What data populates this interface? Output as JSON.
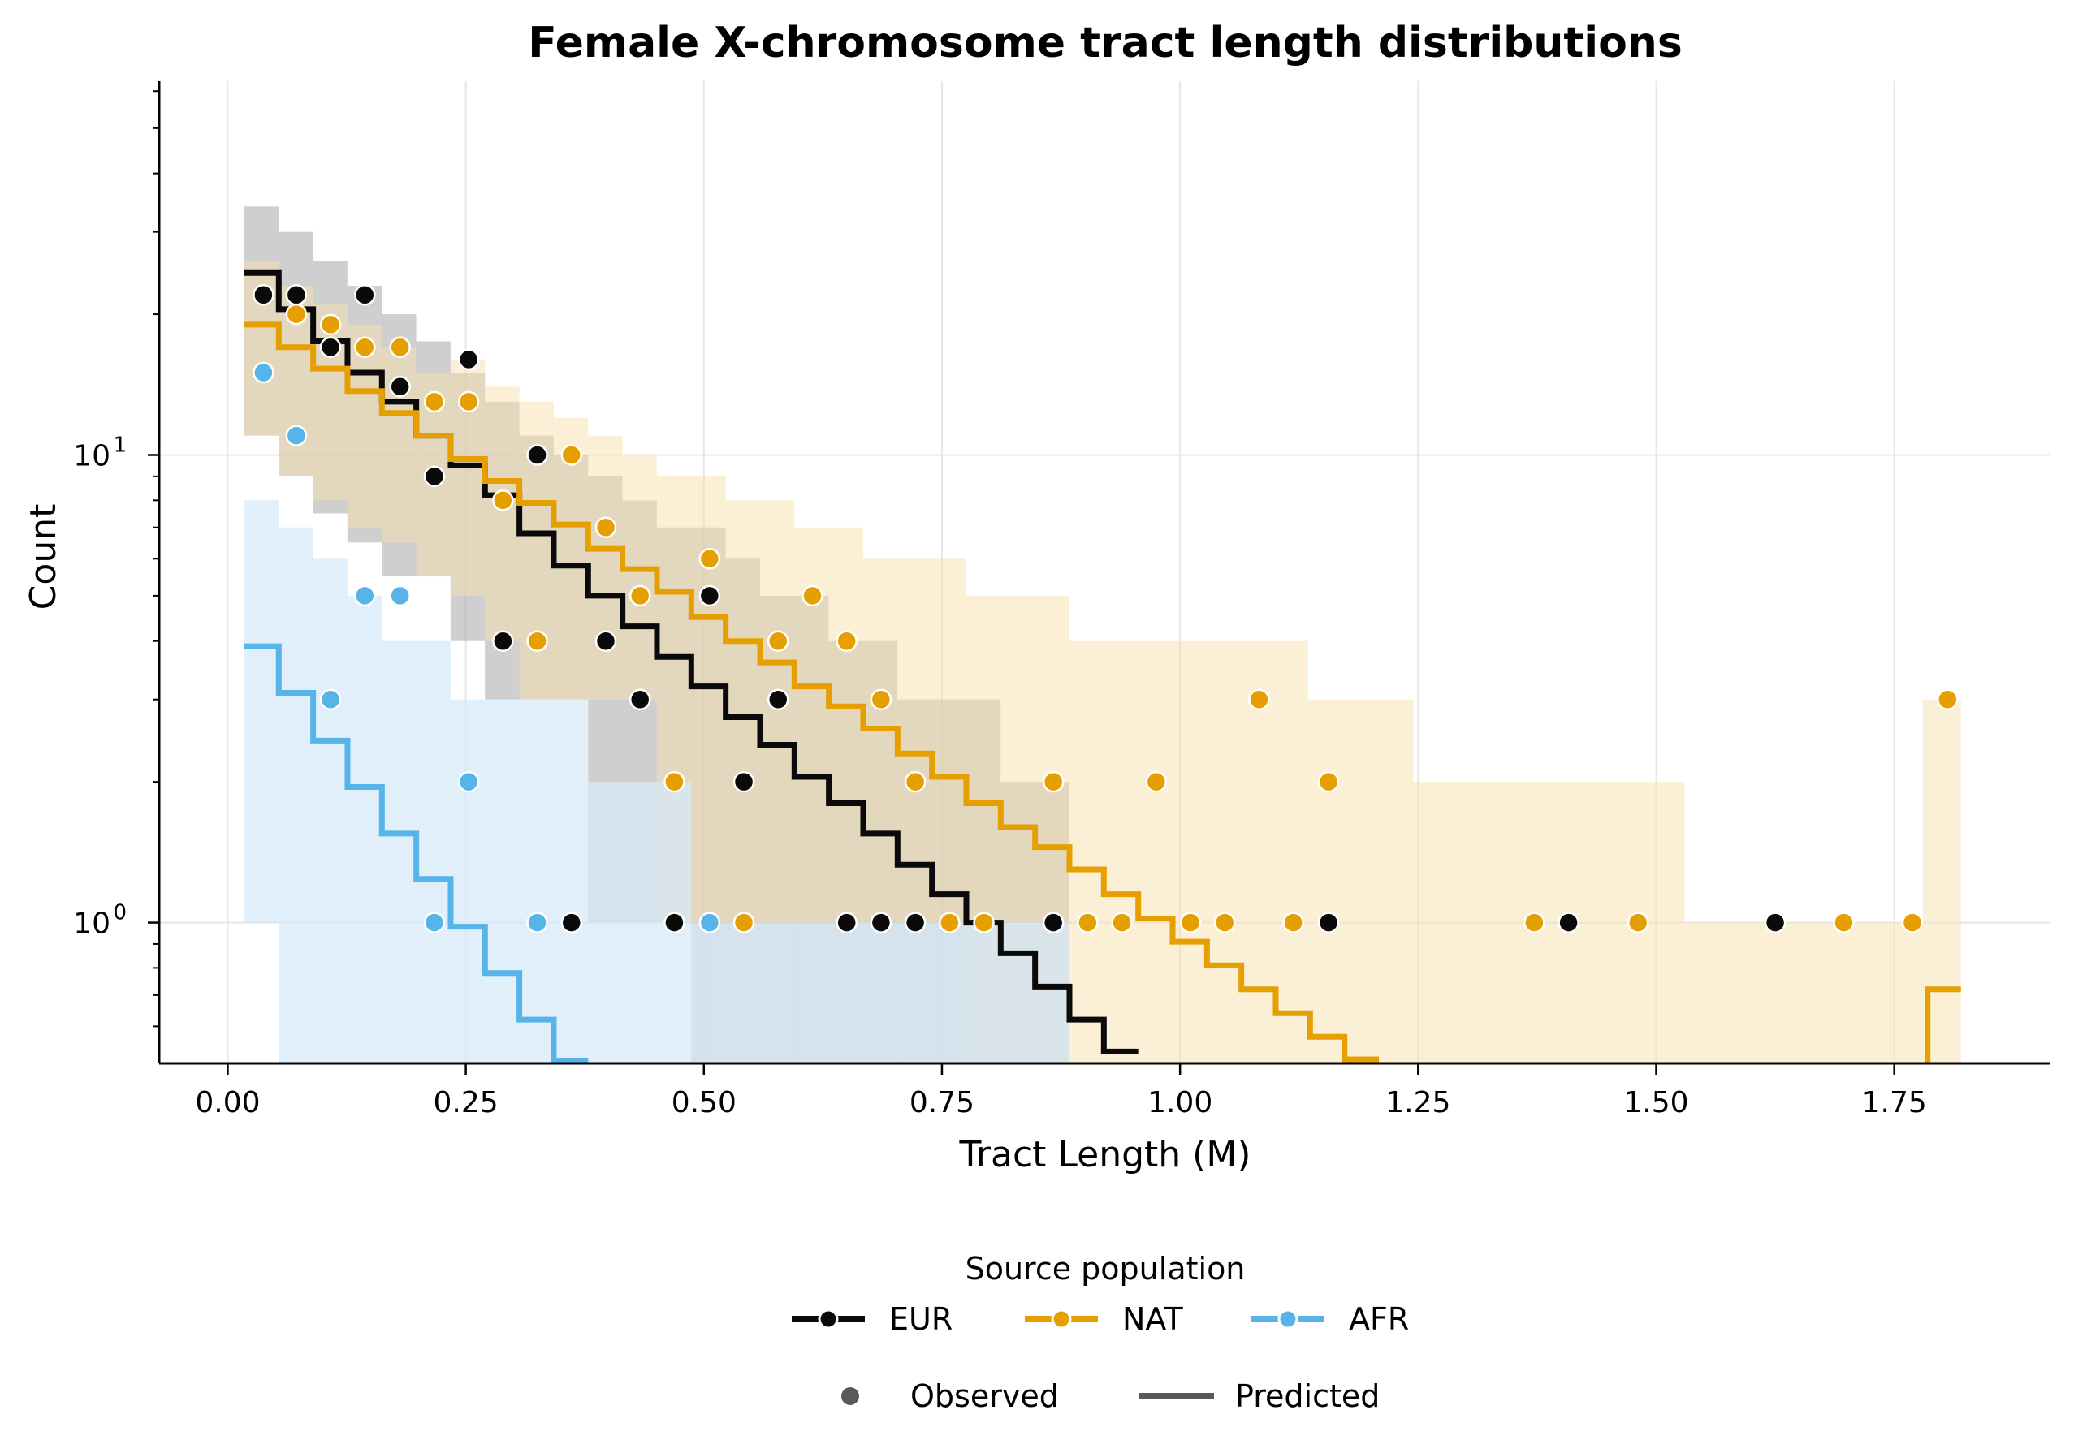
{
  "chart_data": {
    "type": "line",
    "title": "Female X-chromosome tract length distributions",
    "xlabel": "Tract Length (M)",
    "ylabel": "Count",
    "xscale": "linear",
    "yscale": "log",
    "xlim": [
      -0.072,
      1.914
    ],
    "ylim": [
      0.5,
      63
    ],
    "xticks": [
      0.0,
      0.25,
      0.5,
      0.75,
      1.0,
      1.25,
      1.5,
      1.75
    ],
    "xtick_labels": [
      "0.00",
      "0.25",
      "0.50",
      "0.75",
      "1.00",
      "1.25",
      "1.50",
      "1.75"
    ],
    "yticks": [
      1,
      10
    ],
    "ytick_labels": [
      {
        "base": "10",
        "exp": "0"
      },
      {
        "base": "10",
        "exp": "1"
      }
    ],
    "grid": true,
    "legend": {
      "title": "Source population",
      "placement": "bottom-center",
      "entries": [
        "EUR",
        "NAT",
        "AFR"
      ],
      "style_entries": [
        "Observed",
        "Predicted"
      ]
    },
    "series": [
      {
        "name": "EUR",
        "color": "#0a0a0a",
        "band_color": "#a8a8a8",
        "observed": {
          "x": [
            0.0375,
            0.072,
            0.108,
            0.144,
            0.181,
            0.217,
            0.253,
            0.289,
            0.325,
            0.361,
            0.397,
            0.433,
            0.469,
            0.506,
            0.542,
            0.578,
            0.65,
            0.686,
            0.722,
            0.867,
            1.156,
            1.408,
            1.625
          ],
          "y": [
            22,
            22,
            17,
            22,
            14,
            9,
            16,
            4,
            10,
            1,
            4,
            3,
            1,
            5,
            2,
            3,
            1,
            1,
            1,
            1,
            1,
            1,
            1
          ]
        },
        "predicted": {
          "start": 0.0175,
          "bin_width": 0.0361,
          "values": [
            24.5,
            20.5,
            17.5,
            15,
            13,
            11,
            9.5,
            8.2,
            6.8,
            5.8,
            5.0,
            4.3,
            3.7,
            3.2,
            2.75,
            2.4,
            2.05,
            1.8,
            1.55,
            1.33,
            1.15,
            1.0,
            0.86,
            0.73,
            0.62,
            0.53
          ]
        },
        "band": [
          {
            "x0": 0.0175,
            "x1": 0.0535,
            "lo": 11,
            "hi": 34
          },
          {
            "x0": 0.0535,
            "x1": 0.0896,
            "lo": 9,
            "hi": 30
          },
          {
            "x0": 0.0896,
            "x1": 0.1257,
            "lo": 7.5,
            "hi": 26
          },
          {
            "x0": 0.1257,
            "x1": 0.1618,
            "lo": 6.5,
            "hi": 23
          },
          {
            "x0": 0.1618,
            "x1": 0.1979,
            "lo": 5.5,
            "hi": 20
          },
          {
            "x0": 0.1979,
            "x1": 0.234,
            "lo": 5.5,
            "hi": 17.5
          },
          {
            "x0": 0.234,
            "x1": 0.2701,
            "lo": 4,
            "hi": 15
          },
          {
            "x0": 0.2701,
            "x1": 0.3062,
            "lo": 3,
            "hi": 13
          },
          {
            "x0": 0.3062,
            "x1": 0.3423,
            "lo": 3,
            "hi": 11
          },
          {
            "x0": 0.3423,
            "x1": 0.3784,
            "lo": 3,
            "hi": 10
          },
          {
            "x0": 0.3784,
            "x1": 0.4145,
            "lo": 1,
            "hi": 9
          },
          {
            "x0": 0.4145,
            "x1": 0.4506,
            "lo": 1,
            "hi": 8
          },
          {
            "x0": 0.4506,
            "x1": 0.4867,
            "lo": 1,
            "hi": 7
          },
          {
            "x0": 0.4867,
            "x1": 0.5228,
            "lo": 0.5,
            "hi": 7
          },
          {
            "x0": 0.5228,
            "x1": 0.5589,
            "lo": 0.5,
            "hi": 6
          },
          {
            "x0": 0.5589,
            "x1": 0.595,
            "lo": 0.5,
            "hi": 5
          },
          {
            "x0": 0.595,
            "x1": 0.6311,
            "lo": 0.5,
            "hi": 5
          },
          {
            "x0": 0.6311,
            "x1": 0.6672,
            "lo": 0.5,
            "hi": 4
          },
          {
            "x0": 0.6672,
            "x1": 0.7033,
            "lo": 0.5,
            "hi": 4
          },
          {
            "x0": 0.7033,
            "x1": 0.7394,
            "lo": 0.5,
            "hi": 3
          },
          {
            "x0": 0.7394,
            "x1": 0.7755,
            "lo": 0.5,
            "hi": 3
          },
          {
            "x0": 0.7755,
            "x1": 0.8116,
            "lo": 0.5,
            "hi": 3
          },
          {
            "x0": 0.8116,
            "x1": 0.8477,
            "lo": 0.5,
            "hi": 2
          },
          {
            "x0": 0.8477,
            "x1": 0.8838,
            "lo": 0.5,
            "hi": 2
          }
        ]
      },
      {
        "name": "NAT",
        "color": "#e69f00",
        "band_color": "#f7dfae",
        "observed": {
          "x": [
            0.072,
            0.108,
            0.144,
            0.181,
            0.217,
            0.253,
            0.289,
            0.325,
            0.361,
            0.397,
            0.433,
            0.469,
            0.506,
            0.542,
            0.578,
            0.614,
            0.65,
            0.686,
            0.722,
            0.758,
            0.794,
            0.867,
            0.903,
            0.939,
            0.975,
            1.011,
            1.047,
            1.083,
            1.119,
            1.156,
            1.372,
            1.481,
            1.697,
            1.769,
            1.806
          ],
          "y": [
            20,
            19,
            17,
            17,
            13,
            13,
            8,
            4,
            10,
            7,
            5,
            2,
            6,
            1,
            4,
            5,
            4,
            3,
            2,
            1,
            1,
            2,
            1,
            1,
            2,
            1,
            1,
            3,
            1,
            2,
            1,
            1,
            1,
            1,
            3
          ]
        },
        "predicted": {
          "start": 0.0175,
          "bin_width": 0.0361,
          "values": [
            19,
            17,
            15.3,
            13.7,
            12.3,
            11,
            9.8,
            8.8,
            7.9,
            7.1,
            6.3,
            5.7,
            5.1,
            4.5,
            4.0,
            3.6,
            3.2,
            2.9,
            2.6,
            2.3,
            2.05,
            1.8,
            1.6,
            1.45,
            1.3,
            1.15,
            1.02,
            0.91,
            0.81,
            0.72,
            0.64,
            0.57,
            0.51
          ],
          "tail": {
            "x0": 1.785,
            "x1": 1.82,
            "value": 0.72
          }
        },
        "band": [
          {
            "x0": 0.0175,
            "x1": 0.0535,
            "lo": 11,
            "hi": 26
          },
          {
            "x0": 0.0535,
            "x1": 0.0896,
            "lo": 9,
            "hi": 23
          },
          {
            "x0": 0.0896,
            "x1": 0.1257,
            "lo": 8,
            "hi": 21
          },
          {
            "x0": 0.1257,
            "x1": 0.1618,
            "lo": 7,
            "hi": 19
          },
          {
            "x0": 0.1618,
            "x1": 0.1979,
            "lo": 6.5,
            "hi": 17
          },
          {
            "x0": 0.1979,
            "x1": 0.234,
            "lo": 5.5,
            "hi": 15
          },
          {
            "x0": 0.234,
            "x1": 0.2701,
            "lo": 5,
            "hi": 16
          },
          {
            "x0": 0.2701,
            "x1": 0.3062,
            "lo": 4,
            "hi": 14
          },
          {
            "x0": 0.3062,
            "x1": 0.3423,
            "lo": 3,
            "hi": 13
          },
          {
            "x0": 0.3423,
            "x1": 0.3784,
            "lo": 3,
            "hi": 12
          },
          {
            "x0": 0.3784,
            "x1": 0.4145,
            "lo": 3,
            "hi": 11
          },
          {
            "x0": 0.4145,
            "x1": 0.4506,
            "lo": 3,
            "hi": 10
          },
          {
            "x0": 0.4506,
            "x1": 0.4867,
            "lo": 1,
            "hi": 9
          },
          {
            "x0": 0.4867,
            "x1": 0.5228,
            "lo": 1,
            "hi": 9
          },
          {
            "x0": 0.5228,
            "x1": 0.5589,
            "lo": 1,
            "hi": 8
          },
          {
            "x0": 0.5589,
            "x1": 0.595,
            "lo": 1,
            "hi": 8
          },
          {
            "x0": 0.595,
            "x1": 0.6311,
            "lo": 1,
            "hi": 7
          },
          {
            "x0": 0.6311,
            "x1": 0.6672,
            "lo": 1,
            "hi": 7
          },
          {
            "x0": 0.6672,
            "x1": 0.7033,
            "lo": 1,
            "hi": 6
          },
          {
            "x0": 0.7033,
            "x1": 0.7394,
            "lo": 1,
            "hi": 6
          },
          {
            "x0": 0.7394,
            "x1": 0.7755,
            "lo": 1,
            "hi": 6
          },
          {
            "x0": 0.7755,
            "x1": 0.8116,
            "lo": 0.5,
            "hi": 5
          },
          {
            "x0": 0.8116,
            "x1": 0.8838,
            "lo": 0.5,
            "hi": 5
          },
          {
            "x0": 0.8838,
            "x1": 1.0,
            "lo": 0.5,
            "hi": 4
          },
          {
            "x0": 1.0,
            "x1": 1.1345,
            "lo": 0.5,
            "hi": 4
          },
          {
            "x0": 1.1345,
            "x1": 1.245,
            "lo": 0.5,
            "hi": 3
          },
          {
            "x0": 1.245,
            "x1": 1.53,
            "lo": 0.5,
            "hi": 2
          },
          {
            "x0": 1.53,
            "x1": 1.638,
            "lo": 0.5,
            "hi": 1
          },
          {
            "x0": 1.638,
            "x1": 1.78,
            "lo": 0.5,
            "hi": 1
          },
          {
            "x0": 1.78,
            "x1": 1.82,
            "lo": 0.5,
            "hi": 3
          }
        ]
      },
      {
        "name": "AFR",
        "color": "#56b4e9",
        "band_color": "#d6eaf8",
        "observed": {
          "x": [
            0.0375,
            0.072,
            0.108,
            0.144,
            0.181,
            0.217,
            0.253,
            0.325,
            0.506
          ],
          "y": [
            15,
            11,
            3,
            5,
            5,
            1,
            2,
            1,
            1
          ]
        },
        "predicted": {
          "start": 0.0175,
          "bin_width": 0.0361,
          "values": [
            3.9,
            3.1,
            2.45,
            1.95,
            1.55,
            1.24,
            0.98,
            0.78,
            0.62,
            0.505
          ]
        },
        "band": [
          {
            "x0": 0.0175,
            "x1": 0.0535,
            "lo": 1,
            "hi": 8
          },
          {
            "x0": 0.0535,
            "x1": 0.0896,
            "lo": 0.5,
            "hi": 7
          },
          {
            "x0": 0.0896,
            "x1": 0.1257,
            "lo": 0.5,
            "hi": 6
          },
          {
            "x0": 0.1257,
            "x1": 0.1618,
            "lo": 0.5,
            "hi": 5
          },
          {
            "x0": 0.1618,
            "x1": 0.234,
            "lo": 0.5,
            "hi": 4
          },
          {
            "x0": 0.234,
            "x1": 0.3784,
            "lo": 0.5,
            "hi": 3
          },
          {
            "x0": 0.3784,
            "x1": 0.4867,
            "lo": 0.5,
            "hi": 2
          },
          {
            "x0": 0.4867,
            "x1": 0.595,
            "lo": 0.5,
            "hi": 1
          },
          {
            "x0": 0.595,
            "x1": 0.8838,
            "lo": 0.5,
            "hi": 1
          }
        ]
      }
    ]
  }
}
